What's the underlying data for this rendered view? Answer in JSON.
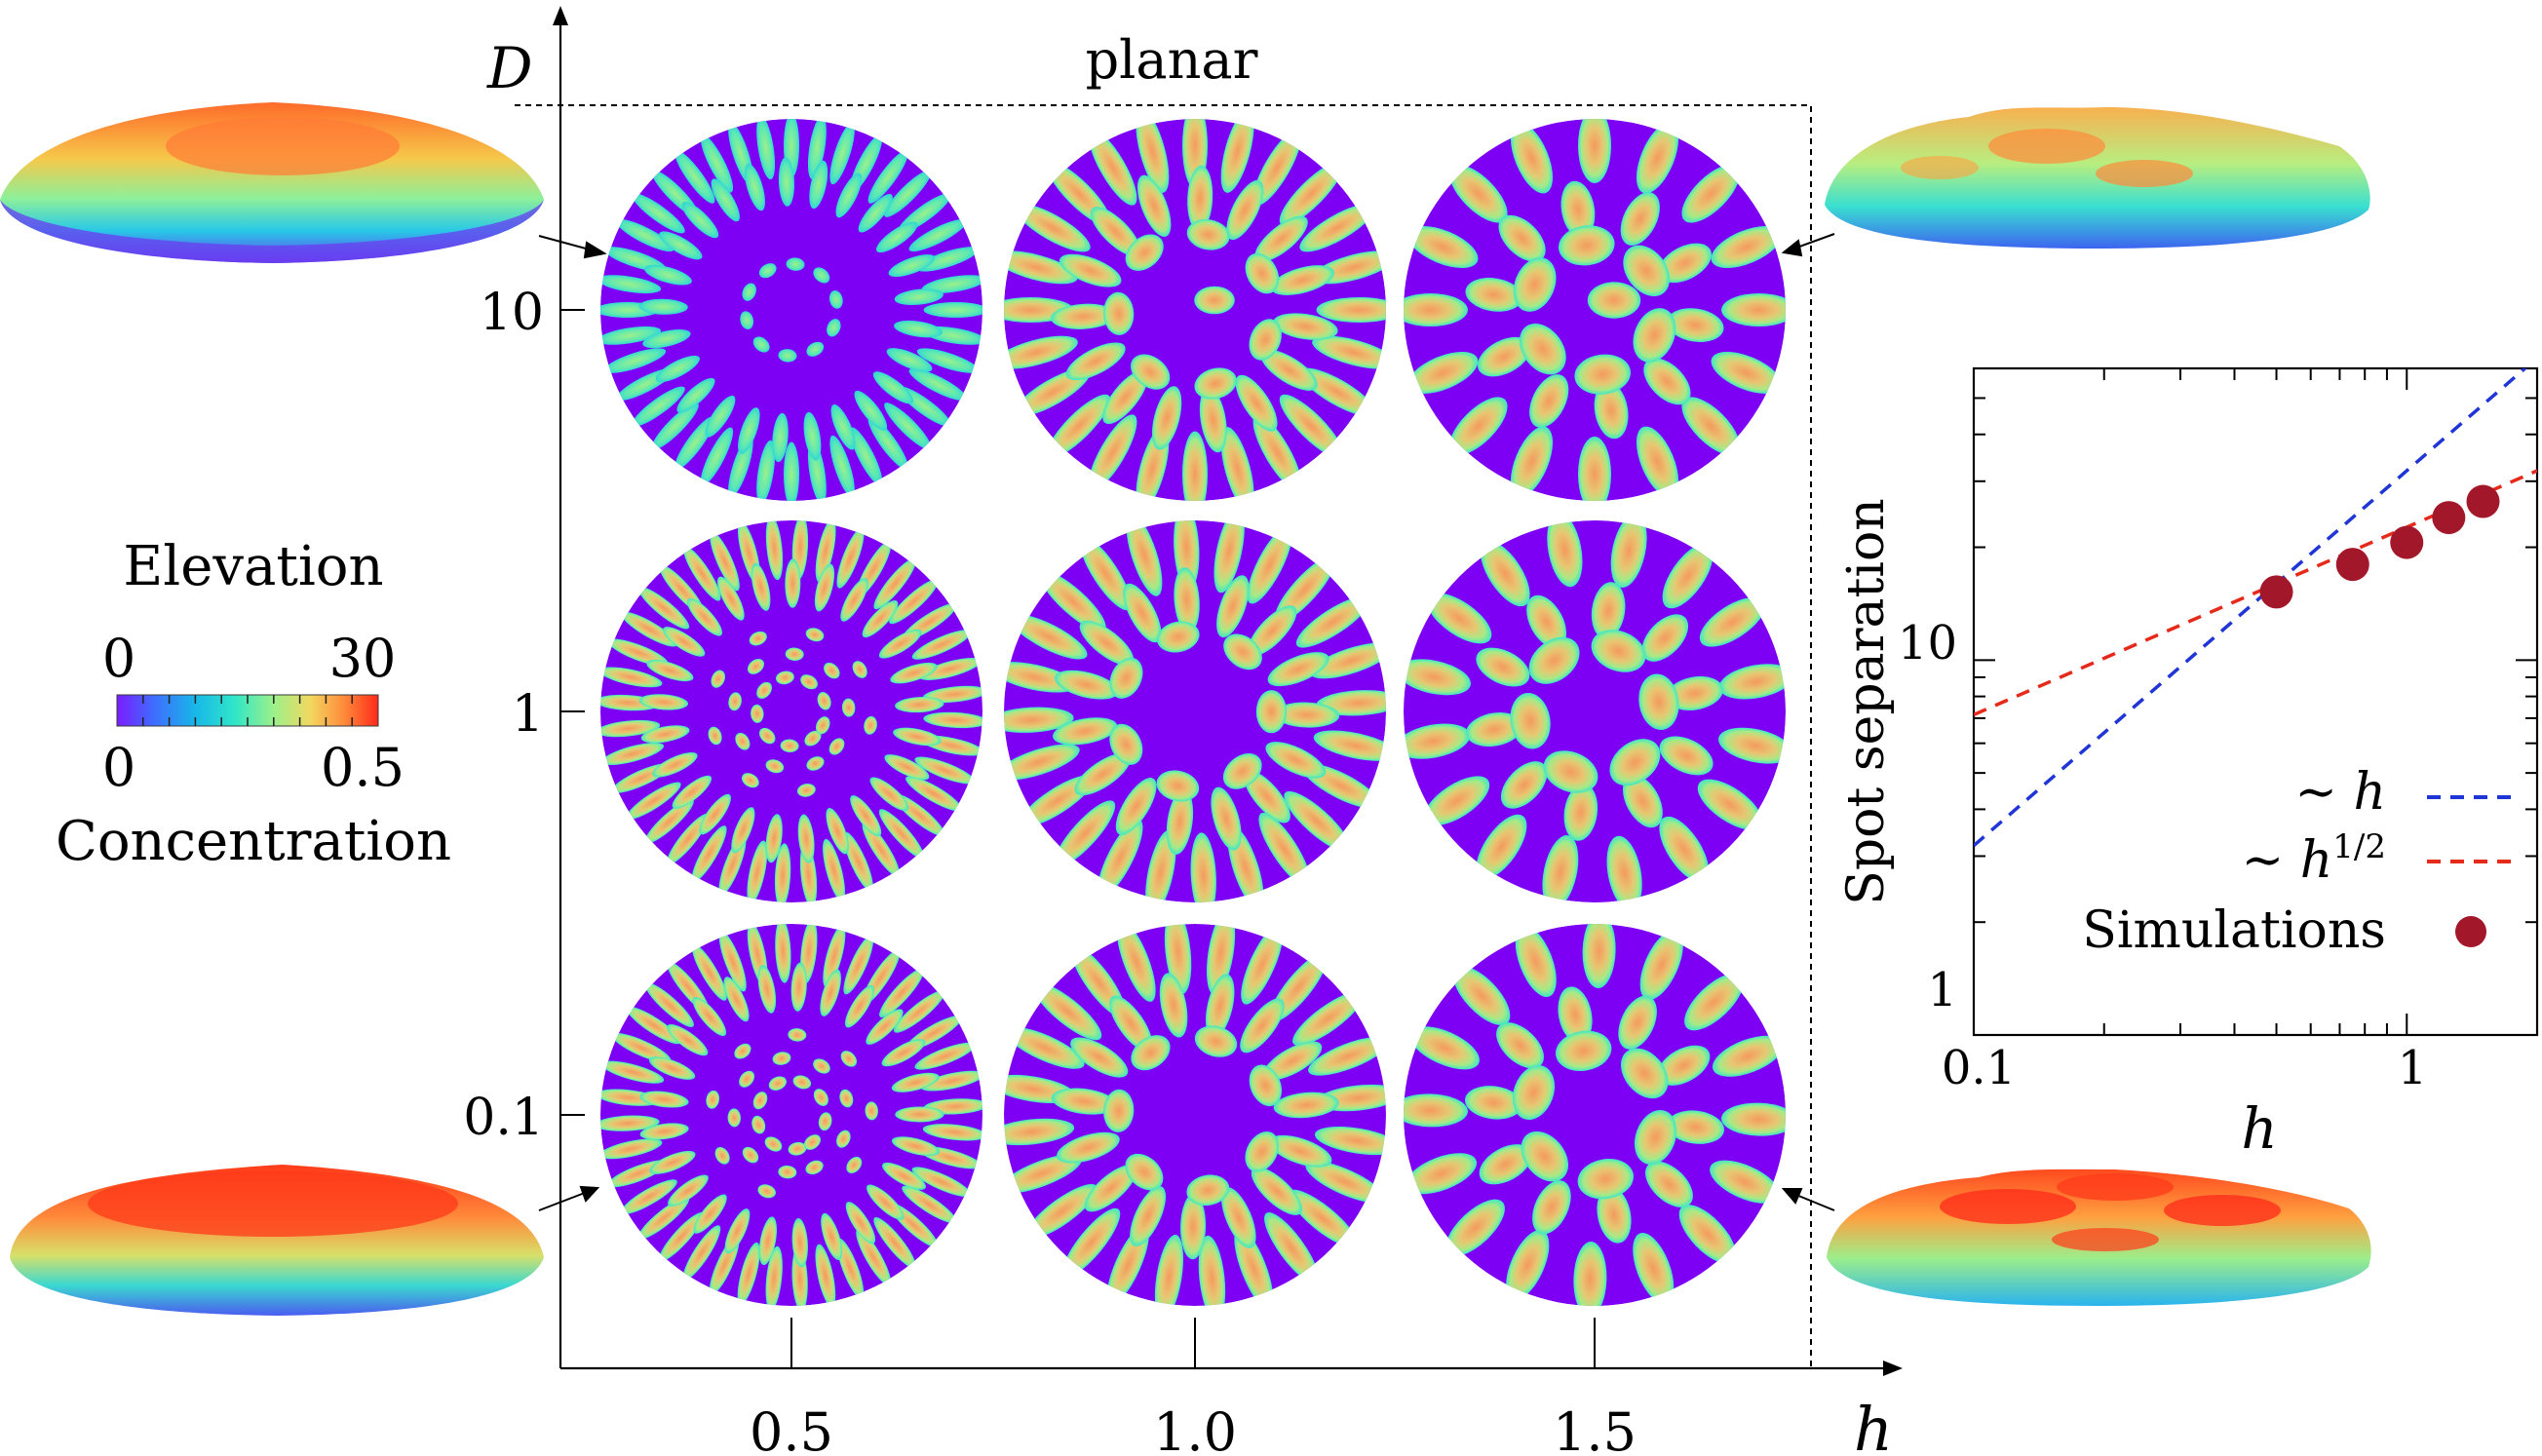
{
  "grid": {
    "y_axis_label": "D",
    "x_axis_label": "h",
    "planar_label": "planar",
    "y_ticks": [
      "10",
      "1",
      "0.1"
    ],
    "x_ticks": [
      "0.5",
      "1.0",
      "1.5"
    ]
  },
  "colorbar": {
    "top_title": "Elevation",
    "top_min": "0",
    "top_max": "30",
    "bottom_min": "0",
    "bottom_max": "0.5",
    "bottom_title": "Concentration",
    "colors": [
      "#7a1cff",
      "#3f6cff",
      "#18b7e8",
      "#2fe6c8",
      "#9cf08a",
      "#f2d860",
      "#ff8a3a",
      "#ff2a1a"
    ]
  },
  "pattern_colors": {
    "background": "#7d00f5",
    "spot_edge": "#3ee6c6",
    "spot_mid": "#a6ea86",
    "spot_core": "#f59a5e"
  },
  "chart_data": {
    "type": "scatter",
    "xlabel": "h",
    "ylabel": "Spot separation",
    "xscale": "log",
    "yscale": "log",
    "xlim": [
      0.1,
      2
    ],
    "ylim": [
      1,
      60
    ],
    "x_ticks": [
      "0.1",
      "1"
    ],
    "y_ticks": [
      "1",
      "10"
    ],
    "legend_position": "bottom-right",
    "series": [
      {
        "name": "~ h",
        "style": "dashed",
        "color": "#1f35d6",
        "x": [
          0.1,
          2.0
        ],
        "y": [
          3.2,
          64
        ]
      },
      {
        "name": "~ h^1/2",
        "style": "dashed",
        "color": "#e62a1a",
        "x": [
          0.1,
          2.0
        ],
        "y": [
          7.15,
          32
        ]
      },
      {
        "name": "Simulations",
        "style": "marker",
        "color": "#a3172a",
        "x": [
          0.5,
          0.75,
          1.0,
          1.25,
          1.5
        ],
        "y": [
          15.2,
          18.0,
          20.6,
          24.0,
          26.5
        ]
      }
    ]
  }
}
